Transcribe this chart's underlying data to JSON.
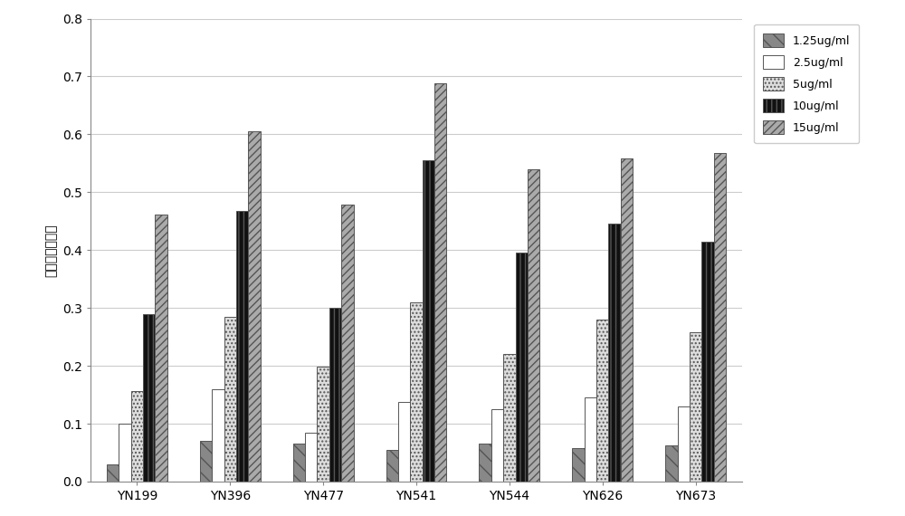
{
  "categories": [
    "YN199",
    "YN396",
    "YN477",
    "YN541",
    "YN544",
    "YN626",
    "YN673"
  ],
  "series": [
    {
      "label": "1.25ug/ml",
      "values": [
        0.03,
        0.07,
        0.065,
        0.055,
        0.065,
        0.058,
        0.062
      ],
      "hatch": "\\\\",
      "facecolor": "#888888"
    },
    {
      "label": "2.5ug/ml",
      "values": [
        0.1,
        0.16,
        0.085,
        0.138,
        0.125,
        0.145,
        0.13
      ],
      "hatch": "",
      "facecolor": "#ffffff"
    },
    {
      "label": "5ug/ml",
      "values": [
        0.157,
        0.285,
        0.198,
        0.31,
        0.22,
        0.28,
        0.258
      ],
      "hatch": "....",
      "facecolor": "#dddddd"
    },
    {
      "label": "10ug/ml",
      "values": [
        0.29,
        0.468,
        0.3,
        0.555,
        0.395,
        0.445,
        0.415
      ],
      "hatch": "|||",
      "facecolor": "#111111"
    },
    {
      "label": "15ug/ml",
      "values": [
        0.462,
        0.605,
        0.478,
        0.688,
        0.54,
        0.558,
        0.568
      ],
      "hatch": "////",
      "facecolor": "#aaaaaa"
    }
  ],
  "ylabel": "菌丝生长抑制率",
  "ylim": [
    0,
    0.8
  ],
  "yticks": [
    0.0,
    0.1,
    0.2,
    0.3,
    0.4,
    0.5,
    0.6,
    0.7,
    0.8
  ],
  "edge_color": "#555555",
  "background_color": "#ffffff",
  "grid_color": "#cccccc",
  "bar_width": 0.13,
  "legend_fontsize": 9,
  "axis_fontsize": 10,
  "tick_fontsize": 10
}
